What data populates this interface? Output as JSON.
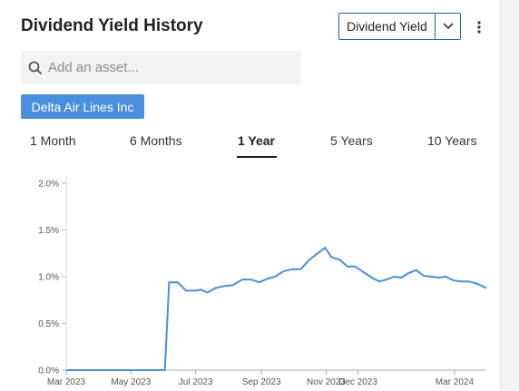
{
  "header": {
    "title": "Dividend Yield History",
    "metric_select": "Dividend Yield",
    "menu_icon": "kebab-icon"
  },
  "search": {
    "placeholder": "Add an asset...",
    "icon": "search-icon"
  },
  "asset_chip": {
    "label": "Delta Air Lines Inc"
  },
  "tabs": [
    {
      "label": "1 Month",
      "active": false
    },
    {
      "label": "6 Months",
      "active": false
    },
    {
      "label": "1 Year",
      "active": true
    },
    {
      "label": "5 Years",
      "active": false
    },
    {
      "label": "10 Years",
      "active": false
    }
  ],
  "colors": {
    "line": "#4a8fde",
    "chip": "#4a8fde",
    "accent_border": "#1f5fa6"
  },
  "chart_data": {
    "type": "line",
    "title": "",
    "xlabel": "",
    "ylabel": "",
    "x_ticks": [
      "Mar 2023",
      "May 2023",
      "Jul 2023",
      "Sep 2023",
      "Nov 2023",
      "Dec 2023",
      "Mar 2024"
    ],
    "y_ticks": [
      "0.0%",
      "0.5%",
      "1.0%",
      "1.5%",
      "2.0%"
    ],
    "ylim": [
      0,
      2.0
    ],
    "xlim": [
      "2023-03-01",
      "2024-03-31"
    ],
    "grid": false,
    "series": [
      {
        "points": [
          [
            "2023-03-01",
            0.0
          ],
          [
            "2023-04-15",
            0.0
          ],
          [
            "2023-06-02",
            0.0
          ],
          [
            "2023-06-06",
            0.94
          ],
          [
            "2023-06-14",
            0.94
          ],
          [
            "2023-06-22",
            0.85
          ],
          [
            "2023-06-30",
            0.85
          ],
          [
            "2023-07-06",
            0.86
          ],
          [
            "2023-07-12",
            0.83
          ],
          [
            "2023-07-20",
            0.88
          ],
          [
            "2023-07-28",
            0.9
          ],
          [
            "2023-08-05",
            0.91
          ],
          [
            "2023-08-14",
            0.97
          ],
          [
            "2023-08-22",
            0.97
          ],
          [
            "2023-08-30",
            0.94
          ],
          [
            "2023-09-07",
            0.98
          ],
          [
            "2023-09-14",
            1.0
          ],
          [
            "2023-09-22",
            1.06
          ],
          [
            "2023-09-30",
            1.08
          ],
          [
            "2023-10-08",
            1.08
          ],
          [
            "2023-10-16",
            1.18
          ],
          [
            "2023-10-24",
            1.25
          ],
          [
            "2023-10-31",
            1.31
          ],
          [
            "2023-11-06",
            1.21
          ],
          [
            "2023-11-14",
            1.18
          ],
          [
            "2023-11-21",
            1.11
          ],
          [
            "2023-11-28",
            1.11
          ],
          [
            "2023-12-06",
            1.05
          ],
          [
            "2023-12-14",
            0.99
          ],
          [
            "2023-12-21",
            0.95
          ],
          [
            "2023-12-28",
            0.97
          ],
          [
            "2024-01-04",
            1.0
          ],
          [
            "2024-01-11",
            0.99
          ],
          [
            "2024-01-18",
            1.04
          ],
          [
            "2024-01-25",
            1.07
          ],
          [
            "2024-02-01",
            1.01
          ],
          [
            "2024-02-08",
            1.0
          ],
          [
            "2024-02-15",
            0.99
          ],
          [
            "2024-02-22",
            1.0
          ],
          [
            "2024-02-29",
            0.96
          ],
          [
            "2024-03-07",
            0.95
          ],
          [
            "2024-03-14",
            0.95
          ],
          [
            "2024-03-21",
            0.93
          ],
          [
            "2024-03-31",
            0.88
          ]
        ]
      }
    ]
  }
}
